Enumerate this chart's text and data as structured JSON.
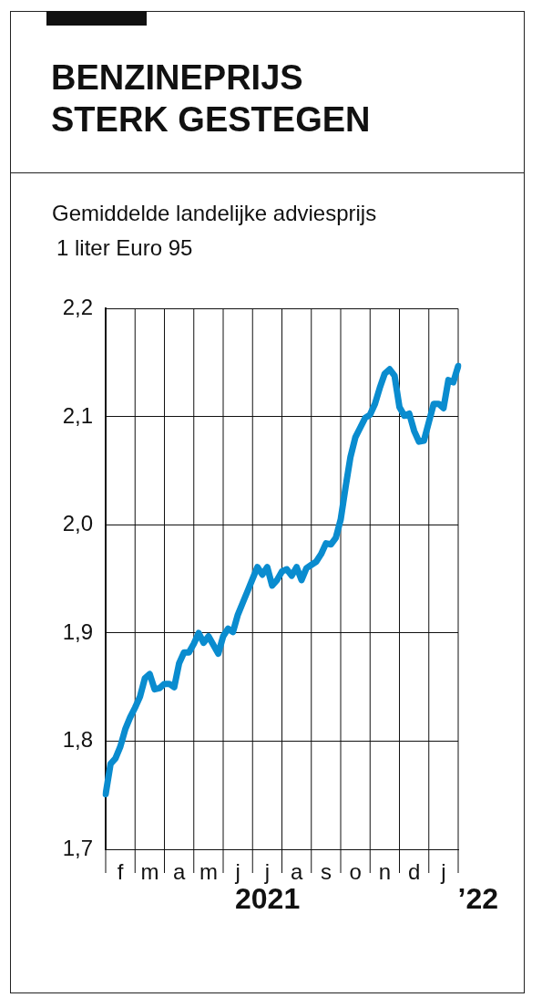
{
  "chart_data": {
    "type": "line",
    "title": "BENZINEPRIJS\nSTERK GESTEGEN",
    "subtitle": "Gemiddelde landelijke adviesprijs",
    "ylabel": "1 liter Euro 95",
    "annotations": [
      "2021",
      "’22"
    ],
    "categories": [
      null,
      null,
      null,
      "f",
      null,
      null,
      null,
      null,
      null,
      "m",
      null,
      null,
      null,
      null,
      null,
      "a",
      null,
      null,
      null,
      null,
      null,
      "m",
      null,
      null,
      null,
      null,
      null,
      "j",
      null,
      null,
      null,
      null,
      null,
      "j",
      null,
      null,
      null,
      null,
      null,
      "a",
      null,
      null,
      null,
      null,
      null,
      "s",
      null,
      null,
      null,
      null,
      null,
      "o",
      null,
      null,
      null,
      null,
      null,
      "n",
      null,
      null,
      null,
      null,
      null,
      "d",
      null,
      null,
      null,
      null,
      null,
      "j",
      null,
      null,
      null
    ],
    "series": [
      {
        "color": "#0a8ccf",
        "values": [
          1.751,
          1.779,
          1.784,
          1.795,
          1.811,
          1.822,
          1.831,
          1.841,
          1.858,
          1.862,
          1.848,
          1.849,
          1.853,
          1.853,
          1.85,
          1.872,
          1.882,
          1.882,
          1.89,
          1.9,
          1.891,
          1.897,
          1.889,
          1.881,
          1.897,
          1.904,
          1.901,
          1.917,
          1.928,
          1.939,
          1.95,
          1.961,
          1.954,
          1.961,
          1.944,
          1.949,
          1.957,
          1.959,
          1.953,
          1.961,
          1.949,
          1.96,
          1.963,
          1.966,
          1.973,
          1.983,
          1.982,
          1.988,
          2.005,
          2.035,
          2.063,
          2.081,
          2.09,
          2.099,
          2.102,
          2.112,
          2.127,
          2.14,
          2.144,
          2.138,
          2.109,
          2.101,
          2.103,
          2.087,
          2.077,
          2.078,
          2.095,
          2.112,
          2.112,
          2.108,
          2.134,
          2.132,
          2.147
        ]
      }
    ],
    "ylim": [
      1.7,
      2.2
    ],
    "yticks": [
      {
        "value": 1.7,
        "label": "1,7"
      },
      {
        "value": 1.8,
        "label": "1,8"
      },
      {
        "value": 1.9,
        "label": "1,9"
      },
      {
        "value": 2.0,
        "label": "2,0"
      },
      {
        "value": 2.1,
        "label": "2,1"
      },
      {
        "value": 2.2,
        "label": "2,2"
      }
    ],
    "grid": true,
    "legend": false,
    "marker": "none",
    "line_style": "solid"
  }
}
